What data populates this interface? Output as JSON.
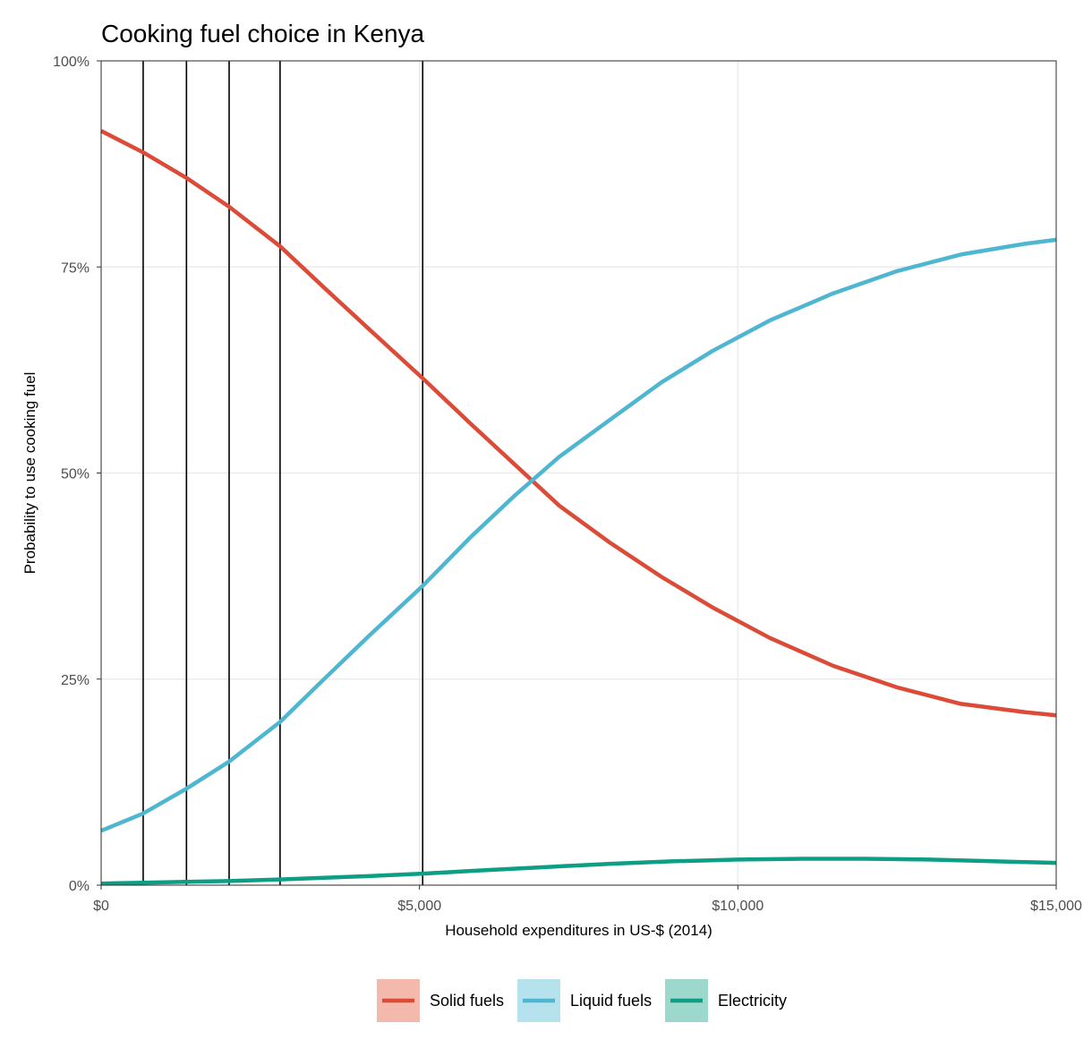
{
  "chart_data": {
    "type": "line",
    "title": "Cooking fuel choice in Kenya",
    "xlabel": "Household expenditures in US-$ (2014)",
    "ylabel": "Probability to use cooking fuel",
    "xlim": [
      0,
      15000
    ],
    "ylim": [
      0,
      1
    ],
    "x_ticks": [
      0,
      5000,
      10000,
      15000
    ],
    "x_tick_labels": [
      "$0",
      "$5,000",
      "$10,000",
      "$15,000"
    ],
    "y_ticks": [
      0,
      0.25,
      0.5,
      0.75,
      1
    ],
    "y_tick_labels": [
      "0%",
      "25%",
      "50%",
      "75%",
      "100%"
    ],
    "grid": true,
    "legend_position": "bottom",
    "vertical_lines": [
      660,
      1340,
      2010,
      2810,
      5050
    ],
    "series": [
      {
        "name": "Solid fuels",
        "color": "#dc4b37",
        "legend_fill": "#f4b9ad",
        "x": [
          0,
          660,
          1340,
          2010,
          2810,
          3500,
          4200,
          5050,
          5800,
          6500,
          7200,
          8000,
          8800,
          9600,
          10500,
          11500,
          12500,
          13500,
          14500,
          15000
        ],
        "y": [
          0.915,
          0.889,
          0.858,
          0.823,
          0.775,
          0.725,
          0.675,
          0.615,
          0.56,
          0.51,
          0.46,
          0.415,
          0.374,
          0.337,
          0.3,
          0.266,
          0.24,
          0.22,
          0.21,
          0.206
        ]
      },
      {
        "name": "Liquid fuels",
        "color": "#4fb6d2",
        "legend_fill": "#b6e2ee",
        "x": [
          0,
          660,
          1340,
          2010,
          2810,
          3500,
          4200,
          5050,
          5800,
          6500,
          7200,
          8000,
          8800,
          9600,
          10500,
          11500,
          12500,
          13500,
          14500,
          15000
        ],
        "y": [
          0.066,
          0.087,
          0.117,
          0.15,
          0.198,
          0.25,
          0.302,
          0.363,
          0.422,
          0.473,
          0.52,
          0.565,
          0.61,
          0.648,
          0.685,
          0.718,
          0.745,
          0.765,
          0.778,
          0.783
        ]
      },
      {
        "name": "Electricity",
        "color": "#0e9e86",
        "legend_fill": "#9cd9cc",
        "x": [
          0,
          660,
          1340,
          2010,
          2810,
          3500,
          4200,
          5050,
          6000,
          7000,
          8000,
          9000,
          10000,
          11000,
          12000,
          13000,
          14000,
          15000
        ],
        "y": [
          0.002,
          0.003,
          0.004,
          0.005,
          0.007,
          0.009,
          0.011,
          0.014,
          0.018,
          0.022,
          0.026,
          0.029,
          0.031,
          0.032,
          0.032,
          0.031,
          0.029,
          0.027
        ]
      }
    ]
  }
}
